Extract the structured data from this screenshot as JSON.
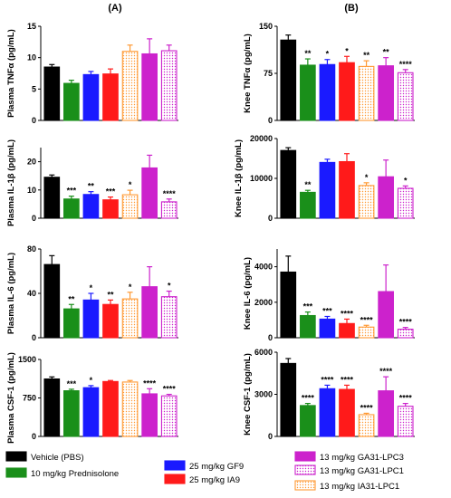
{
  "figure": {
    "panel_labels": [
      "(A)",
      "(B)"
    ]
  },
  "legend": {
    "items": [
      {
        "key": "vehicle",
        "label": "Vehicle (PBS)",
        "color": "#000000",
        "pattern": "solid"
      },
      {
        "key": "pred",
        "label": "10 mg/kg Prednisolone",
        "color": "#1a8f1a",
        "pattern": "solid"
      },
      {
        "key": "gf9",
        "label": "25 mg/kg GF9",
        "color": "#1a1aff",
        "pattern": "solid"
      },
      {
        "key": "ia9",
        "label": "25 mg/kg IA9",
        "color": "#ff1a1a",
        "pattern": "solid"
      },
      {
        "key": "ga31_lpc3",
        "label": "13 mg/kg GA31-LPC3",
        "color": "#cc22cc",
        "pattern": "solid"
      },
      {
        "key": "ga31_lpc1",
        "label": "13 mg/kg GA31-LPC1",
        "color": "#cc22cc",
        "pattern": "dotted"
      },
      {
        "key": "ia31_lpc1",
        "label": "13 mg/kg IA31-LPC1",
        "color": "#ff9933",
        "pattern": "dotted"
      }
    ]
  },
  "chart_data": [
    {
      "type": "bar",
      "panel": "A",
      "ylabel": "Plasma TNFα (pg/mL)",
      "ylim": [
        0,
        15
      ],
      "yticks": [
        "0",
        "5",
        "10",
        "15"
      ],
      "groups": [
        "vehicle",
        "pred",
        "gf9",
        "ia9",
        "ia31_lpc1",
        "ga31_lpc3",
        "ga31_lpc1"
      ],
      "values": [
        8.5,
        5.9,
        7.3,
        7.4,
        11.0,
        10.6,
        11.1
      ],
      "errors": [
        0.4,
        0.5,
        0.5,
        0.8,
        1.0,
        2.4,
        0.9
      ],
      "significance": [
        "",
        "",
        "",
        "",
        "",
        "",
        ""
      ]
    },
    {
      "type": "bar",
      "panel": "A",
      "ylabel": "Plasma IL-1β (pg/mL)",
      "ylim": [
        0,
        25
      ],
      "yticks": [
        "0",
        "10",
        "20"
      ],
      "groups": [
        "vehicle",
        "pred",
        "gf9",
        "ia9",
        "ia31_lpc1",
        "ga31_lpc3",
        "ga31_lpc1"
      ],
      "values": [
        14.5,
        6.8,
        8.4,
        6.5,
        8.3,
        17.8,
        5.8
      ],
      "errors": [
        0.8,
        1.0,
        1.0,
        1.0,
        1.6,
        4.5,
        1.0
      ],
      "significance": [
        "",
        "***",
        "**",
        "***",
        "*",
        "",
        "****"
      ]
    },
    {
      "type": "bar",
      "panel": "A",
      "ylabel": "Plasma IL-6 (pg/mL)",
      "ylim": [
        0,
        80
      ],
      "yticks": [
        "0",
        "40",
        "80"
      ],
      "groups": [
        "vehicle",
        "pred",
        "gf9",
        "ia9",
        "ia31_lpc1",
        "ga31_lpc3",
        "ga31_lpc1"
      ],
      "values": [
        66,
        26,
        34,
        30,
        35,
        46,
        37
      ],
      "errors": [
        8,
        4,
        6,
        4,
        6,
        18,
        5
      ],
      "significance": [
        "",
        "**",
        "*",
        "**",
        "*",
        "",
        "*"
      ]
    },
    {
      "type": "bar",
      "panel": "A",
      "ylabel": "Plasma CSF-1 (pg/mL)",
      "ylim": [
        0,
        1500
      ],
      "yticks": [
        "0",
        "750",
        "1500"
      ],
      "groups": [
        "vehicle",
        "pred",
        "gf9",
        "ia9",
        "ia31_lpc1",
        "ga31_lpc3",
        "ga31_lpc1"
      ],
      "values": [
        1120,
        890,
        950,
        1070,
        1060,
        830,
        790
      ],
      "errors": [
        40,
        30,
        40,
        20,
        30,
        100,
        30
      ],
      "significance": [
        "",
        "***",
        "*",
        "",
        "",
        "****",
        "****"
      ]
    },
    {
      "type": "bar",
      "panel": "B",
      "ylabel": "Knee TNFα (pg/mL)",
      "ylim": [
        0,
        150
      ],
      "yticks": [
        "0",
        "75",
        "150"
      ],
      "groups": [
        "vehicle",
        "pred",
        "gf9",
        "ia9",
        "ia31_lpc1",
        "ga31_lpc3",
        "ga31_lpc1"
      ],
      "values": [
        128,
        88,
        89,
        92,
        86,
        87,
        76
      ],
      "errors": [
        8,
        10,
        8,
        10,
        9,
        13,
        5
      ],
      "significance": [
        "",
        "**",
        "*",
        "*",
        "**",
        "**",
        "****"
      ]
    },
    {
      "type": "bar",
      "panel": "B",
      "ylabel": "Knee IL-1β (pg/mL)",
      "ylim": [
        0,
        20000
      ],
      "yticks": [
        "0",
        "10000",
        "20000"
      ],
      "groups": [
        "vehicle",
        "pred",
        "gf9",
        "ia9",
        "ia31_lpc1",
        "ga31_lpc3",
        "ga31_lpc1"
      ],
      "values": [
        17000,
        6500,
        14000,
        14200,
        8200,
        10400,
        7500
      ],
      "errors": [
        700,
        500,
        800,
        2000,
        700,
        4200,
        600
      ],
      "significance": [
        "",
        "**",
        "",
        "",
        "*",
        "",
        "*"
      ]
    },
    {
      "type": "bar",
      "panel": "B",
      "ylabel": "Knee IL-6 (pg/mL)",
      "ylim": [
        0,
        5000
      ],
      "yticks": [
        "0",
        "2000",
        "4000"
      ],
      "groups": [
        "vehicle",
        "pred",
        "gf9",
        "ia9",
        "ia31_lpc1",
        "ga31_lpc3",
        "ga31_lpc1"
      ],
      "values": [
        3700,
        1250,
        1050,
        800,
        600,
        2600,
        480
      ],
      "errors": [
        900,
        200,
        150,
        250,
        100,
        1500,
        100
      ],
      "significance": [
        "",
        "***",
        "***",
        "****",
        "****",
        "",
        "****"
      ]
    },
    {
      "type": "bar",
      "panel": "B",
      "ylabel": "Knee CSF-1 (pg/mL)",
      "ylim": [
        0,
        6000
      ],
      "yticks": [
        "0",
        "3000",
        "6000"
      ],
      "groups": [
        "vehicle",
        "pred",
        "gf9",
        "ia9",
        "ia31_lpc1",
        "ga31_lpc3",
        "ga31_lpc1"
      ],
      "values": [
        5200,
        2200,
        3400,
        3350,
        1550,
        3250,
        2150
      ],
      "errors": [
        350,
        150,
        250,
        300,
        100,
        1000,
        200
      ],
      "significance": [
        "",
        "****",
        "****",
        "****",
        "****",
        "****",
        "****"
      ]
    }
  ]
}
